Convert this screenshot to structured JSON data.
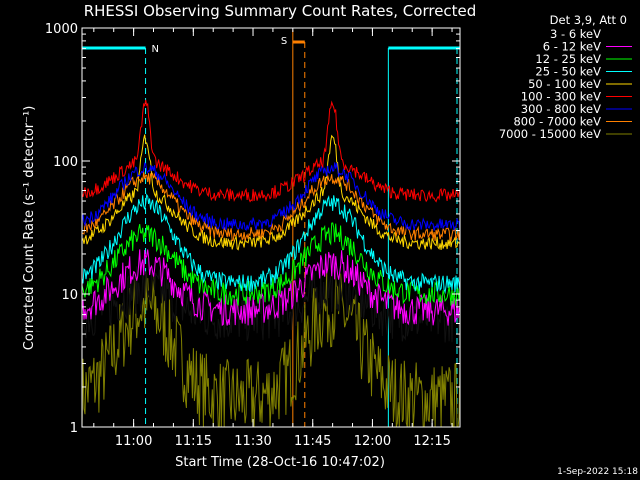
{
  "chart_data": {
    "type": "line",
    "title": "RHESSI Observing Summary Count Rates, Corrected",
    "xlabel": "Start Time (28-Oct-16 10:47:02)",
    "ylabel": "Corrected Count Rate (s⁻¹ detector⁻¹)",
    "y_scale": "log",
    "ylim": [
      1,
      1000
    ],
    "xlim": [
      "10:47:02",
      "12:22:00"
    ],
    "x_ticks": [
      "11:00",
      "11:15",
      "11:30",
      "11:45",
      "12:00",
      "12:15"
    ],
    "y_ticks": [
      "1",
      "10",
      "100",
      "1000"
    ],
    "legend": {
      "header": "Det 3,9, Att 0",
      "placement": "right"
    },
    "series": [
      {
        "name": "3 - 6 keV",
        "color": "#000000",
        "base": 6.5,
        "peak": 11,
        "noise": 0.18
      },
      {
        "name": "6 - 12 keV",
        "color": "#ff00ff",
        "base": 7.5,
        "peak": 17,
        "noise": 0.12
      },
      {
        "name": "12 - 25 keV",
        "color": "#00ff00",
        "base": 10,
        "peak": 28,
        "noise": 0.09
      },
      {
        "name": "25 - 50 keV",
        "color": "#00ffff",
        "base": 12,
        "peak": 48,
        "noise": 0.07
      },
      {
        "name": "50 - 100 keV",
        "color": "#ffd700",
        "base": 24,
        "peak": 60,
        "noise": 0.05
      },
      {
        "name": "100 - 300 keV",
        "color": "#ff0000",
        "base": 55,
        "peak": 100,
        "noise": 0.05
      },
      {
        "name": "300 - 800 keV",
        "color": "#0000ff",
        "base": 33,
        "peak": 88,
        "noise": 0.05
      },
      {
        "name": "800 - 7000 keV",
        "color": "#ff8000",
        "base": 28,
        "peak": 75,
        "noise": 0.05
      },
      {
        "name": "7000 - 15000 keV",
        "color": "#808000",
        "base": 1.6,
        "peak": 8,
        "noise": 0.3
      }
    ],
    "peaks": [
      {
        "time": "11:03",
        "spike": {
          "100 - 300 keV": 270,
          "50 - 100 keV": 150
        }
      },
      {
        "time": "11:50",
        "spike": {
          "100 - 300 keV": 270,
          "50 - 100 keV": 150
        }
      }
    ],
    "annotations": [
      {
        "label": "N",
        "color": "#00ffff",
        "type": "night",
        "intervals": [
          [
            "10:47:02",
            "11:03"
          ],
          [
            "12:04",
            "12:22"
          ]
        ]
      },
      {
        "label": "S",
        "color": "#ff8000",
        "type": "saa",
        "interval": [
          "11:40",
          "11:43"
        ]
      }
    ]
  },
  "footer": {
    "date": "1-Sep-2022 15:18"
  }
}
